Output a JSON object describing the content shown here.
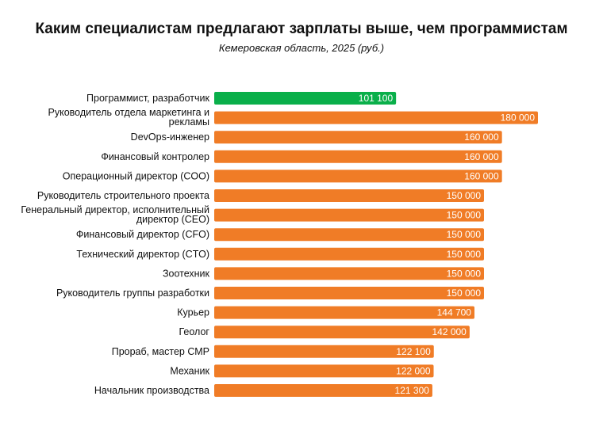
{
  "chart_data": {
    "type": "bar",
    "orientation": "horizontal",
    "title": "Каким специалистам предлагают зарплаты выше, чем программистам",
    "subtitle": "Кемеровская область, 2025 (руб.)",
    "categories": [
      "Программист, разработчик",
      "Руководитель отдела маркетинга и рекламы",
      "DevOps-инженер",
      "Финансовый контролер",
      "Операционный директор (COO)",
      "Руководитель строительного проекта",
      "Генеральный директор, исполнительный директор (CEO)",
      "Финансовый директор (CFO)",
      "Технический директор (CTO)",
      "Зоотехник",
      "Руководитель группы разработки",
      "Курьер",
      "Геолог",
      "Прораб, мастер СМР",
      "Механик",
      "Начальник производства"
    ],
    "values": [
      101100,
      180000,
      160000,
      160000,
      160000,
      150000,
      150000,
      150000,
      150000,
      150000,
      150000,
      144700,
      142000,
      122100,
      122000,
      121300
    ],
    "value_labels": [
      "101 100",
      "180 000",
      "160 000",
      "160 000",
      "160 000",
      "150 000",
      "150 000",
      "150 000",
      "150 000",
      "150 000",
      "150 000",
      "144 700",
      "142 000",
      "122 100",
      "122 000",
      "121 300"
    ],
    "colors": [
      "#0aaf4a",
      "#f07c26",
      "#f07c26",
      "#f07c26",
      "#f07c26",
      "#f07c26",
      "#f07c26",
      "#f07c26",
      "#f07c26",
      "#f07c26",
      "#f07c26",
      "#f07c26",
      "#f07c26",
      "#f07c26",
      "#f07c26",
      "#f07c26"
    ],
    "xlim": [
      0,
      180000
    ],
    "grid": false,
    "legend": "none"
  }
}
